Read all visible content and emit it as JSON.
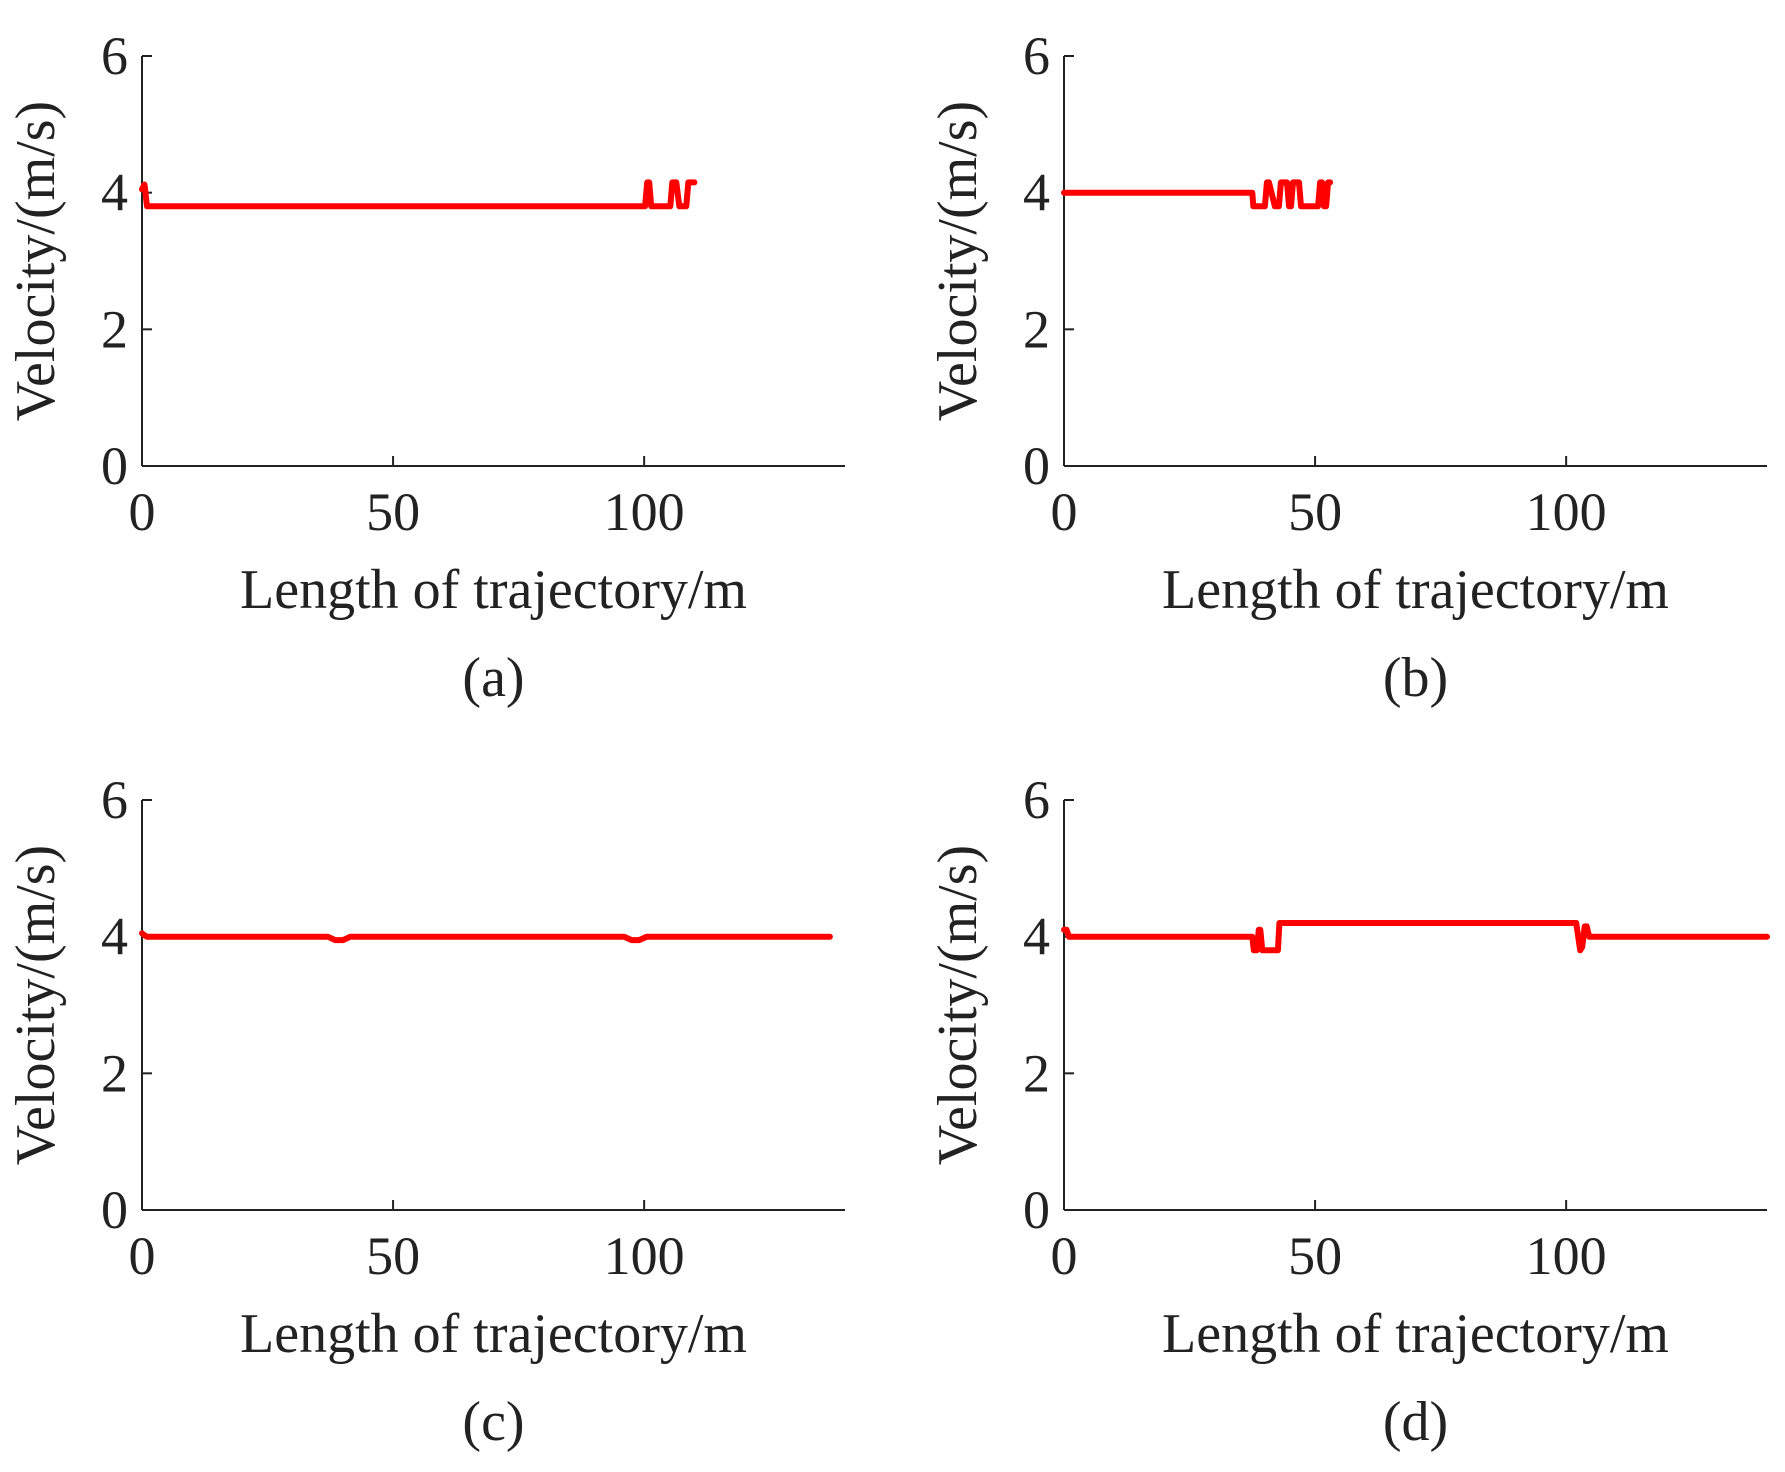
{
  "figure": {
    "panels": [
      "a",
      "b",
      "c",
      "d"
    ]
  },
  "chart_data": [
    {
      "id": "a",
      "type": "line",
      "caption": "(a)",
      "xlabel": "Length of trajectory/m",
      "ylabel": "Velocity/(m/s)",
      "xlim": [
        0,
        140
      ],
      "ylim": [
        0,
        6
      ],
      "xticks": [
        0,
        50,
        100
      ],
      "yticks": [
        0,
        2,
        4,
        6
      ],
      "color": "#ff0000",
      "series": [
        {
          "name": "velocity",
          "x": [
            0,
            0.5,
            1,
            2,
            100,
            100.2,
            100.6,
            101,
            101.4,
            105,
            105.2,
            105.6,
            106.4,
            107,
            108,
            108.4,
            108.8,
            109.2,
            110
          ],
          "y": [
            4.05,
            4.12,
            3.8,
            3.8,
            3.8,
            3.8,
            4.15,
            4.15,
            3.8,
            3.8,
            3.8,
            4.15,
            4.15,
            3.8,
            3.8,
            3.8,
            4.15,
            4.15,
            4.15
          ]
        }
      ]
    },
    {
      "id": "b",
      "type": "line",
      "caption": "(b)",
      "xlabel": "Length of trajectory/m",
      "ylabel": "Velocity/(m/s)",
      "xlim": [
        0,
        140
      ],
      "ylim": [
        0,
        6
      ],
      "xticks": [
        0,
        50,
        100
      ],
      "yticks": [
        0,
        2,
        4,
        6
      ],
      "color": "#ff0000",
      "series": [
        {
          "name": "velocity",
          "x": [
            0,
            37.5,
            37.7,
            39.6,
            40,
            40.4,
            40.8,
            42,
            42.4,
            42.8,
            43.2,
            44.4,
            44.8,
            45.2,
            45.6,
            46.8,
            47.2,
            47.6,
            48,
            50.6,
            51,
            51.4,
            51.8,
            52.2,
            52.6,
            53
          ],
          "y": [
            4.0,
            4.0,
            3.8,
            3.8,
            3.8,
            4.15,
            4.15,
            3.8,
            3.8,
            3.8,
            4.15,
            4.15,
            3.8,
            3.8,
            4.15,
            4.15,
            3.8,
            3.8,
            3.8,
            3.8,
            4.15,
            4.15,
            3.8,
            3.8,
            4.15,
            4.15
          ]
        }
      ]
    },
    {
      "id": "c",
      "type": "line",
      "caption": "(c)",
      "xlabel": "Length of trajectory/m",
      "ylabel": "Velocity/(m/s)",
      "xlim": [
        0,
        140
      ],
      "ylim": [
        0,
        6
      ],
      "xticks": [
        0,
        50,
        100
      ],
      "yticks": [
        0,
        2,
        4,
        6
      ],
      "color": "#ff0000",
      "series": [
        {
          "name": "velocity",
          "x": [
            0,
            0.5,
            1,
            37,
            38.5,
            40,
            41.5,
            96,
            97.5,
            99,
            100.5,
            137
          ],
          "y": [
            4.05,
            4.02,
            4.0,
            4.0,
            3.95,
            3.95,
            4.0,
            4.0,
            3.95,
            3.95,
            4.0,
            4.0
          ]
        }
      ]
    },
    {
      "id": "d",
      "type": "line",
      "caption": "(d)",
      "xlabel": "Length of trajectory/m",
      "ylabel": "Velocity/(m/s)",
      "xlim": [
        0,
        140
      ],
      "ylim": [
        0,
        6
      ],
      "xticks": [
        0,
        50,
        100
      ],
      "yticks": [
        0,
        2,
        4,
        6
      ],
      "color": "#ff0000",
      "series": [
        {
          "name": "velocity",
          "x": [
            0,
            0.5,
            1,
            37.5,
            37.8,
            38.4,
            38.8,
            39.1,
            39.5,
            39.9,
            40.3,
            42.6,
            42.9,
            102,
            102.4,
            102.8,
            103.2,
            103.7,
            104.1,
            104.6,
            105.2,
            140
          ],
          "y": [
            4.1,
            4.1,
            4.0,
            4.0,
            3.8,
            3.8,
            4.1,
            4.1,
            3.8,
            3.8,
            3.8,
            3.8,
            4.2,
            4.2,
            4.0,
            3.8,
            3.85,
            4.15,
            4.15,
            4.0,
            4.0,
            4.0
          ]
        }
      ]
    }
  ]
}
